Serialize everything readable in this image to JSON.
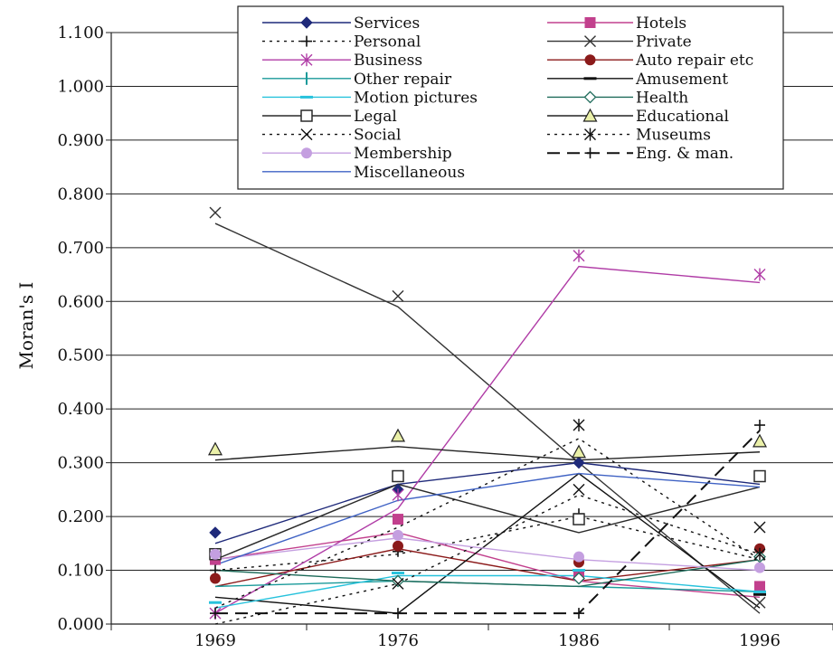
{
  "chart_data": {
    "type": "line",
    "x": [
      "1969",
      "1976",
      "1986",
      "1996"
    ],
    "ylabel": "Moran's I",
    "ylim": [
      0,
      1.1
    ],
    "yticks": [
      "0.000",
      "0.100",
      "0.200",
      "0.300",
      "0.400",
      "0.500",
      "0.600",
      "0.700",
      "0.800",
      "0.900",
      "1.000",
      "1.100"
    ],
    "grid": true,
    "legend_position": "top",
    "series": [
      {
        "name": "Services",
        "color": "#1f2a7a",
        "marker": "diamond",
        "dash": "solid",
        "marker_values": [
          0.17,
          0.25,
          0.3,
          null
        ],
        "line_values": [
          0.15,
          0.26,
          0.3,
          0.26
        ]
      },
      {
        "name": "Hotels",
        "color": "#c2408d",
        "marker": "square",
        "dash": "solid",
        "marker_values": [
          0.12,
          0.195,
          0.09,
          0.07
        ],
        "line_values": [
          0.12,
          0.17,
          0.08,
          0.05
        ]
      },
      {
        "name": "Personal",
        "color": "#111111",
        "marker": "plus",
        "dash": "dotted",
        "marker_values": [
          0.1,
          0.135,
          0.205,
          0.12
        ],
        "line_values": [
          0.1,
          0.13,
          0.2,
          0.12
        ]
      },
      {
        "name": "Private",
        "color": "#333333",
        "marker": "x",
        "dash": "solid",
        "marker_values": [
          0.765,
          0.61,
          null,
          0.04
        ],
        "line_values": [
          0.745,
          0.59,
          0.3,
          0.02
        ]
      },
      {
        "name": "Business",
        "color": "#b03ca6",
        "marker": "asterisk",
        "dash": "solid",
        "marker_values": [
          0.02,
          0.24,
          0.685,
          0.65
        ],
        "line_values": [
          0.02,
          0.215,
          0.665,
          0.635
        ]
      },
      {
        "name": "Auto repair etc",
        "color": "#8b1a1a",
        "marker": "circle",
        "dash": "solid",
        "marker_values": [
          0.085,
          0.145,
          0.115,
          0.14
        ],
        "line_values": [
          0.07,
          0.14,
          0.08,
          0.12
        ]
      },
      {
        "name": "Other repair",
        "color": "#1a9a9a",
        "marker": "vbar",
        "dash": "solid",
        "marker_values": [
          null,
          null,
          null,
          null
        ],
        "line_values": [
          0.07,
          0.08,
          0.07,
          0.06
        ]
      },
      {
        "name": "Amusement",
        "color": "#111111",
        "marker": "hbar",
        "dash": "solid",
        "marker_values": [
          null,
          null,
          null,
          0.055
        ],
        "line_values": [
          0.05,
          0.02,
          0.28,
          0.03
        ]
      },
      {
        "name": "Motion pictures",
        "color": "#27c2dc",
        "marker": "hbar",
        "dash": "solid",
        "marker_values": [
          0.04,
          0.095,
          0.1,
          0.06
        ],
        "line_values": [
          0.03,
          0.09,
          0.09,
          0.06
        ]
      },
      {
        "name": "Health",
        "color": "#1e6b5a",
        "marker": "diamond-open",
        "dash": "solid",
        "marker_values": [
          null,
          0.08,
          0.085,
          0.125
        ],
        "line_values": [
          0.1,
          0.08,
          0.07,
          0.12
        ]
      },
      {
        "name": "Legal",
        "color": "#2a2a2a",
        "marker": "square-open",
        "dash": "solid",
        "marker_values": [
          0.13,
          0.275,
          0.195,
          0.275
        ],
        "line_values": [
          0.12,
          0.26,
          0.17,
          0.255
        ]
      },
      {
        "name": "Educational",
        "color": "#222222",
        "marker": "triangle-open",
        "dash": "solid",
        "marker_values": [
          0.325,
          0.35,
          0.32,
          0.34
        ],
        "line_values": [
          0.305,
          0.33,
          0.305,
          0.32
        ]
      },
      {
        "name": "Social",
        "color": "#111111",
        "marker": "x",
        "dash": "dotted",
        "marker_values": [
          null,
          0.075,
          0.25,
          0.18
        ],
        "line_values": [
          0.0,
          0.075,
          0.24,
          0.13
        ]
      },
      {
        "name": "Museums",
        "color": "#111111",
        "marker": "asterisk",
        "dash": "dotted",
        "marker_values": [
          null,
          null,
          0.37,
          0.13
        ],
        "line_values": [
          0.03,
          0.18,
          0.345,
          0.12
        ]
      },
      {
        "name": "Membership",
        "color": "#c49fe0",
        "marker": "circle",
        "dash": "solid",
        "marker_values": [
          0.13,
          0.165,
          0.125,
          0.105
        ],
        "line_values": [
          0.12,
          0.16,
          0.12,
          0.1
        ]
      },
      {
        "name": "Eng. & man.",
        "color": "#111111",
        "marker": "plus",
        "dash": "dashed",
        "marker_values": [
          0.02,
          0.02,
          0.02,
          0.37
        ],
        "line_values": [
          0.02,
          0.02,
          0.02,
          0.36
        ]
      },
      {
        "name": "Miscellaneous",
        "color": "#3f62c4",
        "marker": "none",
        "dash": "solid",
        "marker_values": [
          null,
          null,
          null,
          null
        ],
        "line_values": [
          0.11,
          0.23,
          0.28,
          0.255
        ]
      }
    ]
  }
}
